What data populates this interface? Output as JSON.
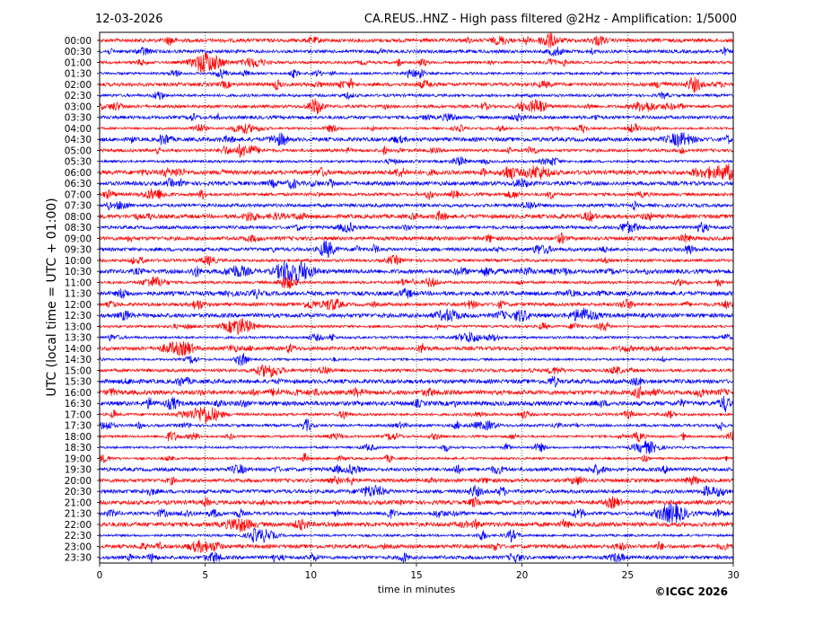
{
  "header": {
    "date": "12-03-2026",
    "title": "CA.REUS..HNZ - High pass filtered @2Hz - Amplification: 1/5000"
  },
  "copyright": "©ICGC 2026",
  "chart_data": {
    "type": "line",
    "subtype": "helicorder",
    "title": "CA.REUS..HNZ - High pass filtered @2Hz - Amplification: 1/5000",
    "date": "12-03-2026",
    "xlabel": "time in minutes",
    "ylabel": "UTC (local time = UTC + 01:00)",
    "xlim": [
      0,
      30
    ],
    "x_ticks": [
      0,
      5,
      10,
      15,
      20,
      25,
      30
    ],
    "vertical_gridlines_at": [
      5,
      10,
      15,
      20,
      25
    ],
    "rows": [
      "00:00",
      "00:30",
      "01:00",
      "01:30",
      "02:00",
      "02:30",
      "03:00",
      "03:30",
      "04:00",
      "04:30",
      "05:00",
      "05:30",
      "06:00",
      "06:30",
      "07:00",
      "07:30",
      "08:00",
      "08:30",
      "09:00",
      "09:30",
      "10:00",
      "10:30",
      "11:00",
      "11:30",
      "12:00",
      "12:30",
      "13:00",
      "13:30",
      "14:00",
      "14:30",
      "15:00",
      "15:30",
      "16:00",
      "16:30",
      "17:00",
      "17:30",
      "18:00",
      "18:30",
      "19:00",
      "19:30",
      "20:00",
      "20:30",
      "21:00",
      "21:30",
      "22:00",
      "22:30",
      "23:00",
      "23:30"
    ],
    "trace_colors": [
      "#ff0000",
      "#0000ff"
    ],
    "events": [
      {
        "row": "00:00",
        "minute": 21.3,
        "strength": 0.35
      },
      {
        "row": "01:00",
        "minute": 5.1,
        "strength": 0.9
      },
      {
        "row": "01:00",
        "minute": 7.3,
        "strength": 0.45
      },
      {
        "row": "03:00",
        "minute": 25.8,
        "strength": 0.5
      },
      {
        "row": "04:00",
        "minute": 6.8,
        "strength": 0.45
      },
      {
        "row": "04:30",
        "minute": 27.5,
        "strength": 0.6
      },
      {
        "row": "05:00",
        "minute": 7.0,
        "strength": 0.5
      },
      {
        "row": "06:00",
        "minute": 20.7,
        "strength": 0.6
      },
      {
        "row": "06:00",
        "minute": 29.7,
        "strength": 0.7
      },
      {
        "row": "07:00",
        "minute": 2.6,
        "strength": 0.5
      },
      {
        "row": "10:30",
        "minute": 9.3,
        "strength": 1.0
      },
      {
        "row": "10:30",
        "minute": 6.5,
        "strength": 0.5
      },
      {
        "row": "11:00",
        "minute": 2.6,
        "strength": 0.5
      },
      {
        "row": "12:30",
        "minute": 16.5,
        "strength": 0.5
      },
      {
        "row": "12:30",
        "minute": 22.9,
        "strength": 0.6
      },
      {
        "row": "13:00",
        "minute": 6.6,
        "strength": 0.8
      },
      {
        "row": "13:30",
        "minute": 17.5,
        "strength": 0.5
      },
      {
        "row": "14:00",
        "minute": 3.5,
        "strength": 0.5
      },
      {
        "row": "15:00",
        "minute": 8.0,
        "strength": 0.6
      },
      {
        "row": "17:00",
        "minute": 5.0,
        "strength": 0.85
      },
      {
        "row": "18:30",
        "minute": 25.9,
        "strength": 0.6
      },
      {
        "row": "20:30",
        "minute": 12.9,
        "strength": 0.5
      },
      {
        "row": "21:30",
        "minute": 27.1,
        "strength": 0.9
      },
      {
        "row": "22:00",
        "minute": 6.6,
        "strength": 0.6
      },
      {
        "row": "22:30",
        "minute": 7.7,
        "strength": 0.6
      },
      {
        "row": "23:00",
        "minute": 4.8,
        "strength": 0.5
      }
    ]
  }
}
